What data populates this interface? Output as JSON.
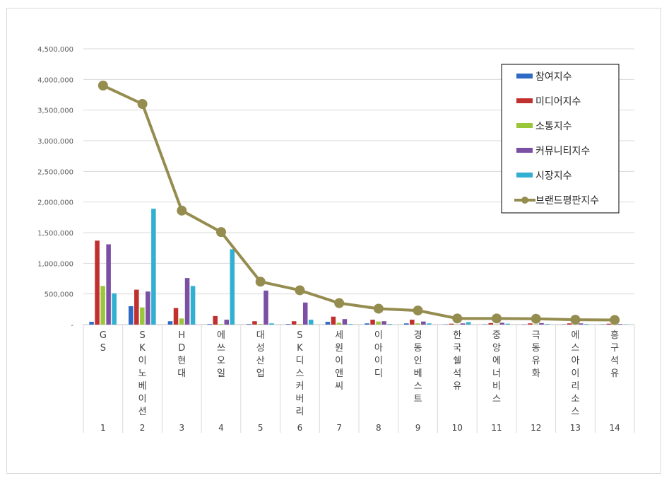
{
  "chart_data": {
    "type": "bar",
    "categories": [
      "GS",
      "SK이노베이션",
      "HD현대",
      "에쓰오일",
      "대성산업",
      "SK디스커버리",
      "세원이앤씨",
      "이아이디",
      "경동인베스트",
      "한국쉘석유",
      "중앙에너비스",
      "극동유화",
      "에스아이리소스",
      "흥구석유"
    ],
    "ranks": [
      "1",
      "2",
      "3",
      "4",
      "5",
      "6",
      "7",
      "8",
      "9",
      "10",
      "11",
      "12",
      "13",
      "14"
    ],
    "series": [
      {
        "name": "참여지수",
        "type": "bar",
        "color": "#2f6bc4",
        "values": [
          45000,
          300000,
          55000,
          10000,
          10000,
          10000,
          45000,
          20000,
          20000,
          5000,
          5000,
          5000,
          5000,
          5000
        ]
      },
      {
        "name": "미디어지수",
        "type": "bar",
        "color": "#c0302e",
        "values": [
          1370000,
          570000,
          270000,
          140000,
          55000,
          55000,
          130000,
          80000,
          80000,
          15000,
          25000,
          20000,
          20000,
          15000
        ]
      },
      {
        "name": "소통지수",
        "type": "bar",
        "color": "#9ac63a",
        "values": [
          630000,
          280000,
          100000,
          10000,
          10000,
          10000,
          30000,
          50000,
          20000,
          5000,
          5000,
          5000,
          5000,
          5000
        ]
      },
      {
        "name": "커뮤니티지수",
        "type": "bar",
        "color": "#7b4fa3",
        "values": [
          1310000,
          540000,
          760000,
          80000,
          555000,
          360000,
          90000,
          55000,
          50000,
          20000,
          30000,
          25000,
          20000,
          10000
        ]
      },
      {
        "name": "시장지수",
        "type": "bar",
        "color": "#31b0d1",
        "values": [
          510000,
          1890000,
          630000,
          1230000,
          20000,
          80000,
          10000,
          10000,
          20000,
          40000,
          15000,
          10000,
          10000,
          5000
        ]
      },
      {
        "name": "브랜드평판지수",
        "type": "line",
        "color": "#958c4f",
        "values": [
          3900000,
          3600000,
          1860000,
          1510000,
          700000,
          560000,
          350000,
          260000,
          230000,
          100000,
          100000,
          95000,
          80000,
          75000
        ]
      }
    ],
    "y_ticks": [
      "-",
      "500,000",
      "1,000,000",
      "1,500,000",
      "2,000,000",
      "2,500,000",
      "3,000,000",
      "3,500,000",
      "4,000,000",
      "4,500,000"
    ],
    "ylim": [
      0,
      4500000
    ],
    "grid": true,
    "legend_position": "top-right"
  }
}
